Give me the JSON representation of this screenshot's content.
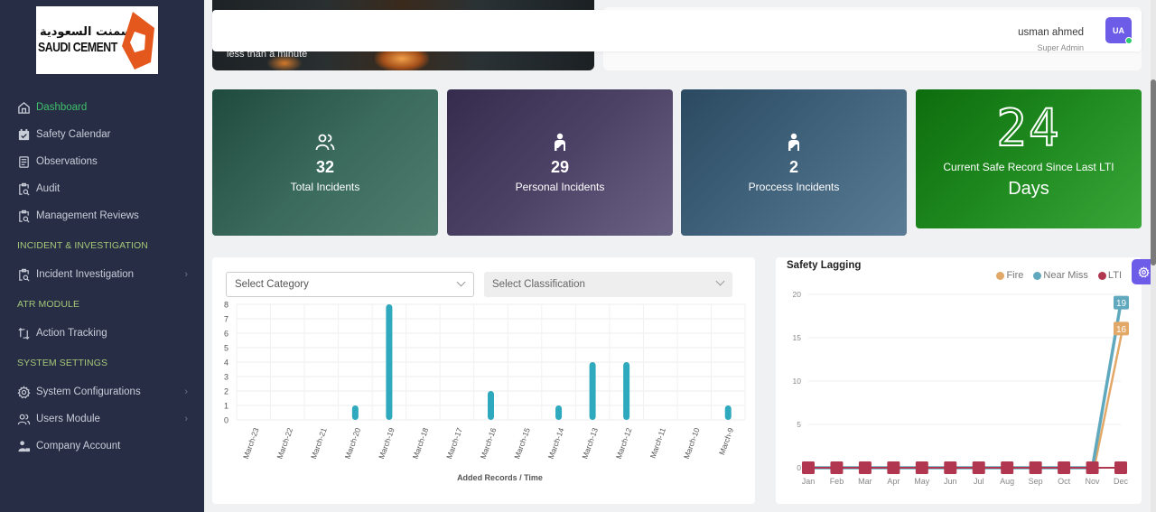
{
  "brand": {
    "arabic": "الإسمنت السعودية",
    "english": "SAUDI CEMENT",
    "accent": "#e4581d"
  },
  "sidebar": {
    "items": [
      {
        "label": "Dashboard",
        "icon": "home-icon",
        "active": true
      },
      {
        "label": "Safety Calendar",
        "icon": "calendar-check-icon"
      },
      {
        "label": "Observations",
        "icon": "document-list-icon"
      },
      {
        "label": "Audit",
        "icon": "clipboard-search-icon"
      },
      {
        "label": "Management Reviews",
        "icon": "clipboard-search-icon"
      }
    ],
    "section_incident": "INCIDENT & INVESTIGATION",
    "incident_items": [
      {
        "label": "Incident Investigation",
        "icon": "clipboard-search-icon",
        "has_submenu": true
      }
    ],
    "section_atr": "ATR MODULE",
    "atr_items": [
      {
        "label": "Action Tracking",
        "icon": "arrows-exchange-icon"
      }
    ],
    "section_system": "SYSTEM SETTINGS",
    "system_items": [
      {
        "label": "System Configurations",
        "icon": "gear-icon",
        "has_submenu": true
      },
      {
        "label": "Users Module",
        "icon": "users-icon",
        "has_submenu": true
      },
      {
        "label": "Company Account",
        "icon": "company-user-icon"
      }
    ],
    "chevron": "›",
    "active_color": "#3ec06a",
    "section_color": "#a5c878"
  },
  "banner": {
    "caption": "less than a minute"
  },
  "header": {
    "user_name": "usman ahmed",
    "user_role": "Super Admin",
    "avatar_initials": "UA",
    "avatar_color": "#6c5ce7",
    "status": "online"
  },
  "stats": [
    {
      "value": "32",
      "label": "Total Incidents",
      "icon": "users-icon"
    },
    {
      "value": "29",
      "label": "Personal Incidents",
      "icon": "injured-person-icon"
    },
    {
      "value": "2",
      "label": "Proccess Incidents",
      "icon": "injured-person-icon"
    }
  ],
  "safe_record": {
    "value": "24",
    "label": "Current Safe Record Since Last LTI",
    "unit": "Days"
  },
  "filters": {
    "category_placeholder": "Select Category",
    "classification_placeholder": "Select Classification"
  },
  "chart_data": [
    {
      "type": "bar",
      "title": "",
      "xlabel": "Added Records / Time",
      "ylabel": "",
      "categories": [
        "March-23",
        "March-22",
        "March-21",
        "March-20",
        "March-19",
        "March-18",
        "March-17",
        "March-16",
        "March-15",
        "March-14",
        "March-13",
        "March-12",
        "March-11",
        "March-10",
        "March-9"
      ],
      "values": [
        0,
        0,
        0,
        1,
        8,
        0,
        0,
        2,
        0,
        1,
        4,
        4,
        0,
        0,
        1
      ],
      "yticks": [
        0,
        1,
        2,
        3,
        4,
        5,
        6,
        7,
        8
      ],
      "ylim": [
        0,
        8
      ],
      "color": "#2ea9bd",
      "grid": true
    },
    {
      "type": "line",
      "title": "Safety Lagging",
      "xlabel": "",
      "ylabel": "",
      "categories": [
        "Jan",
        "Feb",
        "Mar",
        "Apr",
        "May",
        "Jun",
        "Jul",
        "Aug",
        "Sep",
        "Oct",
        "Nov",
        "Dec"
      ],
      "series": [
        {
          "name": "Fire",
          "color": "#e2a868",
          "values": [
            0,
            0,
            0,
            0,
            0,
            0,
            0,
            0,
            0,
            0,
            0,
            16
          ]
        },
        {
          "name": "Near Miss",
          "color": "#5fa8bd",
          "values": [
            0,
            0,
            0,
            0,
            0,
            0,
            0,
            0,
            0,
            0,
            0,
            19
          ]
        },
        {
          "name": "LTI",
          "color": "#b0374f",
          "values": [
            0,
            0,
            0,
            0,
            0,
            0,
            0,
            0,
            0,
            0,
            0,
            0
          ]
        }
      ],
      "data_labels": [
        {
          "series": "Near Miss",
          "x": "Dec",
          "value": "19"
        },
        {
          "series": "Fire",
          "x": "Dec",
          "value": "16"
        }
      ],
      "yticks": [
        0,
        5,
        10,
        15,
        20
      ],
      "ylim": [
        0,
        20
      ],
      "legend_position": "top-right",
      "grid": true
    }
  ]
}
